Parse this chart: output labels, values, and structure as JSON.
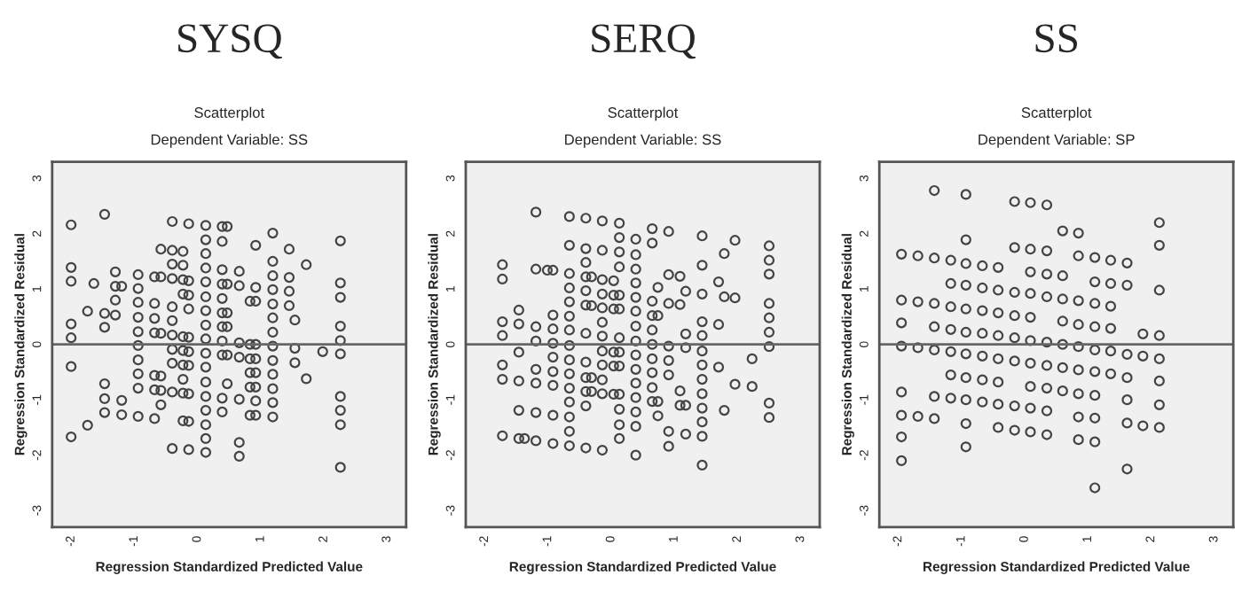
{
  "chart_data": [
    {
      "type": "scatter",
      "title": "SYSQ",
      "subtitle": "Scatterplot",
      "annotations": [
        "Dependent Variable: SS"
      ],
      "xlabel": "Regression Standardized Predicted Value",
      "ylabel": "Regression Standardized Residual",
      "xlim": [
        -2.3,
        3.3
      ],
      "ylim": [
        -3.3,
        3.3
      ],
      "xticks": [
        -2,
        -1,
        0,
        1,
        2,
        3
      ],
      "yticks": [
        -3,
        -2,
        -1,
        0,
        1,
        2,
        3
      ],
      "grid": false,
      "marker": "circle",
      "ref_lines": [
        {
          "axis": "y",
          "value": 0,
          "color": "#666666"
        }
      ],
      "series": [
        {
          "color": "#444444",
          "x": [
            -2.0,
            -2.0,
            -2.0,
            -2.0,
            -2.0,
            -2.0,
            -2.0,
            -1.74,
            -1.74,
            -1.64,
            -1.47,
            -1.47,
            -1.47,
            -1.47,
            -1.47,
            -1.47,
            -1.3,
            -1.3,
            -1.3,
            -1.3,
            -1.2,
            -1.2,
            -1.2,
            -0.94,
            -0.94,
            -0.94,
            -0.94,
            -0.94,
            -0.94,
            -0.94,
            -0.94,
            -0.94,
            -0.94,
            -0.68,
            -0.68,
            -0.68,
            -0.68,
            -0.68,
            -0.68,
            -0.68,
            -0.58,
            -0.58,
            -0.58,
            -0.58,
            -0.58,
            -0.58,
            -0.4,
            -0.4,
            -0.4,
            -0.4,
            -0.4,
            -0.4,
            -0.4,
            -0.4,
            -0.4,
            -0.4,
            -0.4,
            -0.23,
            -0.23,
            -0.23,
            -0.23,
            -0.23,
            -0.23,
            -0.23,
            -0.23,
            -0.23,
            -0.23,
            -0.14,
            -0.14,
            -0.14,
            -0.14,
            -0.14,
            -0.14,
            -0.14,
            -0.14,
            -0.14,
            -0.14,
            0.13,
            0.13,
            0.13,
            0.13,
            0.13,
            0.13,
            0.13,
            0.13,
            0.13,
            0.13,
            0.13,
            0.13,
            0.13,
            0.13,
            0.13,
            0.13,
            0.13,
            0.39,
            0.39,
            0.39,
            0.39,
            0.39,
            0.39,
            0.39,
            0.39,
            0.39,
            0.39,
            0.39,
            0.47,
            0.47,
            0.47,
            0.47,
            0.47,
            0.47,
            0.66,
            0.66,
            0.66,
            0.66,
            0.66,
            0.66,
            0.66,
            0.83,
            0.83,
            0.83,
            0.83,
            0.83,
            0.83,
            0.92,
            0.92,
            0.92,
            0.92,
            0.92,
            0.92,
            0.92,
            0.92,
            0.92,
            1.19,
            1.19,
            1.19,
            1.19,
            1.19,
            1.19,
            1.19,
            1.19,
            1.19,
            1.19,
            1.19,
            1.19,
            1.19,
            1.45,
            1.45,
            1.45,
            1.45,
            1.54,
            1.54,
            1.54,
            1.72,
            1.72,
            1.98,
            2.26,
            2.26,
            2.26,
            2.26,
            2.26,
            2.26,
            2.26,
            2.26,
            2.26,
            2.26
          ],
          "values": [
            2.16,
            1.39,
            1.14,
            0.37,
            0.12,
            -0.4,
            -1.67,
            0.6,
            -1.46,
            1.1,
            2.35,
            0.56,
            0.31,
            -0.71,
            -0.98,
            -1.23,
            1.31,
            1.05,
            0.8,
            0.53,
            1.05,
            -1.01,
            -1.27,
            1.26,
            1.01,
            0.76,
            0.49,
            0.23,
            -0.02,
            -0.28,
            -0.53,
            -0.79,
            -1.3,
            1.22,
            0.74,
            0.47,
            0.21,
            -0.56,
            -0.82,
            -1.34,
            1.72,
            1.22,
            0.2,
            -0.57,
            -0.83,
            -1.09,
            2.22,
            1.7,
            1.45,
            1.19,
            0.68,
            0.43,
            0.17,
            -0.09,
            -0.34,
            -0.86,
            -1.88,
            1.68,
            1.43,
            1.17,
            0.91,
            0.14,
            -0.11,
            -0.37,
            -0.63,
            -0.88,
            -1.38,
            2.18,
            1.15,
            0.89,
            0.64,
            0.13,
            -0.13,
            -0.38,
            -0.89,
            -1.39,
            -1.9,
            2.15,
            1.89,
            1.64,
            1.38,
            1.13,
            0.86,
            0.61,
            0.35,
            0.1,
            -0.16,
            -0.41,
            -0.68,
            -0.94,
            -1.19,
            -1.45,
            -1.7,
            -1.95,
            2.13,
            1.86,
            1.35,
            1.09,
            0.83,
            0.57,
            0.32,
            0.06,
            -0.19,
            -0.97,
            -1.22,
            2.13,
            1.09,
            0.57,
            0.32,
            -0.19,
            -0.71,
            1.32,
            1.06,
            0.03,
            -0.23,
            -0.99,
            -1.77,
            -2.02,
            0.78,
            0.0,
            -0.26,
            -0.51,
            -0.77,
            -1.28,
            1.79,
            1.03,
            0.78,
            0.0,
            -0.26,
            -0.51,
            -0.77,
            -1.02,
            -1.28,
            2.01,
            1.5,
            1.24,
            0.99,
            0.73,
            0.48,
            0.22,
            -0.03,
            -0.29,
            -0.54,
            -0.8,
            -1.05,
            -1.31,
            1.72,
            1.21,
            0.96,
            0.7,
            0.44,
            -0.07,
            -0.33,
            1.44,
            -0.62,
            -0.13,
            1.87,
            1.11,
            0.85,
            0.33,
            0.07,
            -0.17,
            -0.94,
            -1.19,
            -1.45,
            -2.22
          ]
        }
      ]
    },
    {
      "type": "scatter",
      "title": "SERQ",
      "subtitle": "Scatterplot",
      "annotations": [
        "Dependent Variable: SS"
      ],
      "xlabel": "Regression Standardized Predicted Value",
      "ylabel": "Regression Standardized Residual",
      "xlim": [
        -2.3,
        3.3
      ],
      "ylim": [
        -3.3,
        3.3
      ],
      "xticks": [
        -2,
        -1,
        0,
        1,
        2,
        3
      ],
      "yticks": [
        -3,
        -2,
        -1,
        0,
        1,
        2,
        3
      ],
      "grid": false,
      "marker": "circle",
      "ref_lines": [
        {
          "axis": "y",
          "value": 0,
          "color": "#666666"
        }
      ],
      "series": [
        {
          "color": "#444444",
          "x": [
            -1.72,
            -1.72,
            -1.72,
            -1.72,
            -1.72,
            -1.72,
            -1.72,
            -1.46,
            -1.46,
            -1.46,
            -1.46,
            -1.46,
            -1.46,
            -1.37,
            -1.19,
            -1.19,
            -1.19,
            -1.19,
            -1.19,
            -1.19,
            -1.19,
            -1.19,
            -1.01,
            -0.92,
            -0.92,
            -0.92,
            -0.92,
            -0.92,
            -0.92,
            -0.92,
            -0.92,
            -0.92,
            -0.66,
            -0.66,
            -0.66,
            -0.66,
            -0.66,
            -0.66,
            -0.66,
            -0.66,
            -0.66,
            -0.66,
            -0.66,
            -0.66,
            -0.66,
            -0.66,
            -0.66,
            -0.4,
            -0.4,
            -0.4,
            -0.4,
            -0.4,
            -0.4,
            -0.4,
            -0.4,
            -0.4,
            -0.4,
            -0.4,
            -0.4,
            -0.31,
            -0.31,
            -0.31,
            -0.31,
            -0.14,
            -0.14,
            -0.14,
            -0.14,
            -0.14,
            -0.14,
            -0.14,
            -0.14,
            -0.14,
            -0.14,
            -0.14,
            -0.14,
            0.04,
            0.04,
            0.04,
            0.04,
            0.04,
            0.04,
            0.13,
            0.13,
            0.13,
            0.13,
            0.13,
            0.13,
            0.13,
            0.13,
            0.13,
            0.13,
            0.13,
            0.13,
            0.13,
            0.39,
            0.39,
            0.39,
            0.39,
            0.39,
            0.39,
            0.39,
            0.39,
            0.39,
            0.39,
            0.39,
            0.39,
            0.39,
            0.39,
            0.39,
            0.65,
            0.65,
            0.65,
            0.65,
            0.65,
            0.65,
            0.65,
            0.65,
            0.65,
            0.65,
            0.74,
            0.74,
            0.74,
            0.74,
            0.91,
            0.91,
            0.91,
            0.91,
            0.91,
            0.91,
            0.91,
            0.91,
            1.09,
            1.09,
            1.09,
            1.09,
            1.18,
            1.18,
            1.18,
            1.18,
            1.18,
            1.44,
            1.44,
            1.44,
            1.44,
            1.44,
            1.44,
            1.44,
            1.44,
            1.44,
            1.44,
            1.44,
            1.44,
            1.44,
            1.7,
            1.7,
            1.7,
            1.79,
            1.79,
            1.79,
            1.96,
            1.96,
            1.96,
            2.23,
            2.23,
            2.5,
            2.5,
            2.5,
            2.5,
            2.5,
            2.5,
            2.5,
            2.5,
            2.5
          ],
          "values": [
            1.44,
            1.18,
            0.41,
            0.16,
            -0.37,
            -0.63,
            -1.65,
            0.62,
            0.37,
            -0.14,
            -0.66,
            -1.19,
            -1.7,
            -1.7,
            2.39,
            1.36,
            0.32,
            0.06,
            -0.45,
            -0.7,
            -1.23,
            -1.74,
            1.34,
            1.34,
            0.53,
            0.28,
            0.02,
            -0.23,
            -0.49,
            -0.74,
            -1.28,
            -1.79,
            2.31,
            1.79,
            1.28,
            1.02,
            0.77,
            0.51,
            0.26,
            -0.02,
            -0.28,
            -0.53,
            -0.79,
            -1.04,
            -1.31,
            -1.57,
            -1.83,
            2.28,
            1.73,
            1.48,
            1.22,
            0.97,
            0.71,
            0.2,
            -0.32,
            -0.6,
            -0.85,
            -1.11,
            -1.87,
            1.22,
            0.7,
            -0.6,
            -0.85,
            2.23,
            1.7,
            1.17,
            0.91,
            0.66,
            0.4,
            0.15,
            -0.12,
            -0.37,
            -0.64,
            -0.89,
            -1.91,
            1.15,
            0.89,
            0.64,
            -0.14,
            -0.39,
            -0.9,
            2.19,
            1.93,
            1.67,
            1.4,
            0.89,
            0.64,
            0.12,
            -0.14,
            -0.39,
            -0.9,
            -1.17,
            -1.45,
            -1.7,
            1.9,
            1.62,
            1.36,
            1.11,
            0.85,
            0.6,
            0.33,
            0.06,
            -0.19,
            -0.45,
            -0.7,
            -0.96,
            -1.22,
            -1.48,
            -2.0,
            2.09,
            1.83,
            0.78,
            0.52,
            0.26,
            0.0,
            -0.26,
            -0.51,
            -0.78,
            -1.03,
            1.03,
            0.52,
            -1.03,
            -1.29,
            2.04,
            1.26,
            0.74,
            -0.03,
            -0.29,
            -0.55,
            -1.57,
            -1.84,
            1.23,
            0.72,
            -0.84,
            -1.1,
            0.96,
            0.19,
            -0.06,
            -1.1,
            -1.62,
            1.96,
            1.43,
            0.91,
            0.41,
            0.16,
            -0.12,
            -0.37,
            -0.63,
            -0.89,
            -1.15,
            -1.4,
            -1.66,
            -2.18,
            1.13,
            0.36,
            -0.41,
            1.64,
            0.86,
            -1.19,
            1.88,
            0.84,
            -0.72,
            -0.26,
            -0.76,
            1.78,
            1.52,
            1.27,
            0.74,
            0.48,
            0.22,
            -0.04,
            -1.06,
            -1.32
          ]
        }
      ]
    },
    {
      "type": "scatter",
      "title": "SS",
      "subtitle": "Scatterplot",
      "annotations": [
        "Dependent Variable: SP"
      ],
      "xlabel": "Regression Standardized Predicted Value",
      "ylabel": "Regression Standardized Residual",
      "xlim": [
        -2.3,
        3.3
      ],
      "ylim": [
        -3.3,
        3.3
      ],
      "xticks": [
        -2,
        -1,
        0,
        1,
        2,
        3
      ],
      "yticks": [
        -3,
        -2,
        -1,
        0,
        1,
        2,
        3
      ],
      "grid": false,
      "marker": "circle",
      "ref_lines": [
        {
          "axis": "y",
          "value": 0,
          "color": "#666666"
        }
      ],
      "series": [
        {
          "color": "#444444",
          "x": [
            -1.95,
            -1.95,
            -1.95,
            -1.95,
            -1.95,
            -1.95,
            -1.95,
            -1.95,
            -1.69,
            -1.69,
            -1.69,
            -1.69,
            -1.43,
            -1.43,
            -1.43,
            -1.43,
            -1.43,
            -1.43,
            -1.43,
            -1.17,
            -1.17,
            -1.17,
            -1.17,
            -1.17,
            -1.17,
            -1.17,
            -0.93,
            -0.93,
            -0.93,
            -0.93,
            -0.93,
            -0.93,
            -0.93,
            -0.93,
            -0.93,
            -0.93,
            -0.93,
            -0.67,
            -0.67,
            -0.67,
            -0.67,
            -0.67,
            -0.67,
            -0.67,
            -0.42,
            -0.42,
            -0.42,
            -0.42,
            -0.42,
            -0.42,
            -0.42,
            -0.42,
            -0.16,
            -0.16,
            -0.16,
            -0.16,
            -0.16,
            -0.16,
            -0.16,
            -0.16,
            0.09,
            0.09,
            0.09,
            0.09,
            0.09,
            0.09,
            0.09,
            0.09,
            0.09,
            0.09,
            0.35,
            0.35,
            0.35,
            0.35,
            0.35,
            0.35,
            0.35,
            0.35,
            0.35,
            0.6,
            0.6,
            0.6,
            0.6,
            0.6,
            0.6,
            0.6,
            0.85,
            0.85,
            0.85,
            0.85,
            0.85,
            0.85,
            0.85,
            0.85,
            0.85,
            1.11,
            1.11,
            1.11,
            1.11,
            1.11,
            1.11,
            1.11,
            1.11,
            1.11,
            1.11,
            1.36,
            1.36,
            1.36,
            1.36,
            1.36,
            1.36,
            1.62,
            1.62,
            1.62,
            1.62,
            1.62,
            1.62,
            1.62,
            1.87,
            1.87,
            1.87,
            2.13,
            2.13,
            2.13,
            2.13,
            2.13,
            2.13,
            2.13,
            2.13
          ],
          "values": [
            1.63,
            0.8,
            0.39,
            -0.03,
            -0.86,
            -1.28,
            -1.67,
            -2.1,
            1.6,
            0.77,
            -0.06,
            -1.3,
            2.78,
            1.56,
            0.74,
            0.32,
            -0.1,
            -0.94,
            -1.34,
            1.52,
            1.1,
            0.68,
            0.27,
            -0.13,
            -0.55,
            -0.97,
            2.71,
            1.89,
            1.46,
            1.07,
            0.64,
            0.22,
            -0.17,
            -0.6,
            -1.0,
            -1.43,
            -1.85,
            1.42,
            1.02,
            0.61,
            0.2,
            -0.21,
            -0.64,
            -1.04,
            1.39,
            0.98,
            0.57,
            0.16,
            -0.26,
            -0.68,
            -1.08,
            -1.5,
            2.58,
            1.75,
            0.94,
            0.52,
            0.12,
            -0.3,
            -1.11,
            -1.55,
            2.56,
            1.72,
            1.31,
            0.92,
            0.49,
            0.07,
            -0.34,
            -0.76,
            -1.15,
            -1.58,
            2.52,
            1.69,
            1.27,
            0.86,
            0.04,
            -0.38,
            -0.79,
            -1.2,
            -1.63,
            2.05,
            1.24,
            0.82,
            0.42,
            0.0,
            -0.42,
            -0.84,
            2.01,
            1.6,
            0.79,
            0.36,
            -0.04,
            -0.46,
            -0.89,
            -1.31,
            -1.72,
            1.57,
            1.13,
            0.74,
            0.32,
            -0.1,
            -0.49,
            -0.92,
            -1.33,
            -1.76,
            -2.59,
            1.52,
            1.1,
            0.69,
            0.29,
            -0.12,
            -0.53,
            1.47,
            1.07,
            -0.18,
            -0.6,
            -1.0,
            -1.42,
            -2.25,
            0.19,
            -0.21,
            -1.47,
            2.2,
            1.79,
            0.98,
            0.16,
            -0.26,
            -0.66,
            -1.09,
            -1.5
          ]
        }
      ]
    }
  ]
}
